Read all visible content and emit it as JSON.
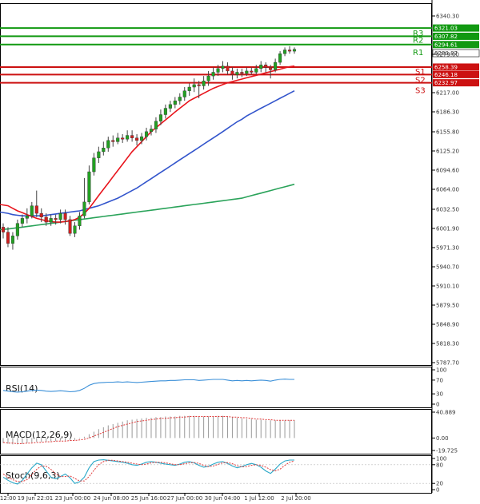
{
  "chart_data": {
    "type": "candlestick",
    "colors": {
      "up": "#22a022",
      "down": "#d11f1f",
      "wick": "#444444",
      "ma_short": "#e8141c",
      "ma_mid": "#3355cc",
      "ma_long": "#2aa35a",
      "resistance": "#119911",
      "support": "#cc1111",
      "rsi": "#3a8fd8",
      "macd_hist": "#999999",
      "macd_signal": "#e03a3a",
      "stoch_main": "#2aa8c8",
      "stoch_signal": "#e03a3a"
    },
    "price_axis": {
      "min": 5787.7,
      "max": 6340.3,
      "ticks": [
        "6340.30",
        "6279.00",
        "6217.00",
        "6186.30",
        "6155.80",
        "6125.20",
        "6094.60",
        "6064.00",
        "6032.50",
        "6001.90",
        "5971.30",
        "5940.70",
        "5910.10",
        "5879.50",
        "5848.90",
        "5818.30",
        "5787.70"
      ]
    },
    "time_axis": [
      "12:00",
      "19 Jun 22:01",
      "23 Jun 00:00",
      "24 Jun 08:00",
      "25 Jun 16:00",
      "27 Jun 00:00",
      "30 Jun 04:00",
      "1 Jul 12:00",
      "2 Jul 20:00"
    ],
    "levels": [
      {
        "name": "R3",
        "value": 6321.03,
        "label": "6321.03",
        "kind": "resistance"
      },
      {
        "name": "R2",
        "value": 6307.82,
        "label": "6307.82",
        "kind": "resistance"
      },
      {
        "name": "R1",
        "value": 6294.61,
        "label": "6294.61",
        "kind": "resistance"
      },
      {
        "name": "S1",
        "value": 6258.39,
        "label": "6258.39",
        "kind": "support"
      },
      {
        "name": "S2",
        "value": 6246.18,
        "label": "6246.18",
        "kind": "support"
      },
      {
        "name": "S3",
        "value": 6232.97,
        "label": "6232.97",
        "kind": "support"
      }
    ],
    "current_price": {
      "value": 6280.87,
      "label": "6280.87"
    },
    "candles": [
      [
        6004,
        5996,
        6010,
        5986
      ],
      [
        5996,
        5978,
        6004,
        5972
      ],
      [
        5978,
        5990,
        5996,
        5968
      ],
      [
        5990,
        6010,
        6016,
        5984
      ],
      [
        6010,
        6018,
        6024,
        6004
      ],
      [
        6018,
        6022,
        6034,
        6010
      ],
      [
        6022,
        6038,
        6044,
        6018
      ],
      [
        6038,
        6026,
        6062,
        6020
      ],
      [
        6026,
        6020,
        6034,
        6012
      ],
      [
        6020,
        6012,
        6026,
        6006
      ],
      [
        6012,
        6018,
        6024,
        6006
      ],
      [
        6018,
        6016,
        6024,
        6008
      ],
      [
        6016,
        6026,
        6032,
        6010
      ],
      [
        6026,
        6016,
        6032,
        6008
      ],
      [
        6016,
        5994,
        6022,
        5990
      ],
      [
        5994,
        6006,
        6012,
        5988
      ],
      [
        6006,
        6022,
        6028,
        6000
      ],
      [
        6022,
        6044,
        6082,
        6018
      ],
      [
        6044,
        6092,
        6102,
        6040
      ],
      [
        6092,
        6114,
        6122,
        6086
      ],
      [
        6114,
        6124,
        6132,
        6106
      ],
      [
        6124,
        6130,
        6140,
        6118
      ],
      [
        6130,
        6142,
        6148,
        6124
      ],
      [
        6142,
        6140,
        6150,
        6132
      ],
      [
        6140,
        6146,
        6154,
        6136
      ],
      [
        6146,
        6144,
        6152,
        6138
      ],
      [
        6144,
        6150,
        6158,
        6140
      ],
      [
        6150,
        6146,
        6158,
        6140
      ],
      [
        6146,
        6142,
        6152,
        6134
      ],
      [
        6142,
        6148,
        6154,
        6136
      ],
      [
        6148,
        6156,
        6162,
        6142
      ],
      [
        6156,
        6160,
        6166,
        6150
      ],
      [
        6160,
        6172,
        6178,
        6154
      ],
      [
        6172,
        6182,
        6190,
        6166
      ],
      [
        6182,
        6192,
        6198,
        6176
      ],
      [
        6192,
        6198,
        6204,
        6186
      ],
      [
        6198,
        6204,
        6210,
        6192
      ],
      [
        6204,
        6210,
        6216,
        6198
      ],
      [
        6210,
        6220,
        6226,
        6204
      ],
      [
        6220,
        6226,
        6232,
        6212
      ],
      [
        6226,
        6230,
        6240,
        6218
      ],
      [
        6230,
        6228,
        6236,
        6208
      ],
      [
        6228,
        6236,
        6244,
        6222
      ],
      [
        6236,
        6244,
        6252,
        6228
      ],
      [
        6244,
        6250,
        6258,
        6238
      ],
      [
        6250,
        6256,
        6262,
        6244
      ],
      [
        6256,
        6260,
        6268,
        6250
      ],
      [
        6260,
        6252,
        6266,
        6246
      ],
      [
        6252,
        6246,
        6258,
        6238
      ],
      [
        6246,
        6250,
        6256,
        6240
      ],
      [
        6250,
        6248,
        6256,
        6242
      ],
      [
        6248,
        6252,
        6258,
        6244
      ],
      [
        6252,
        6250,
        6258,
        6246
      ],
      [
        6250,
        6256,
        6262,
        6246
      ],
      [
        6256,
        6262,
        6268,
        6250
      ],
      [
        6262,
        6258,
        6266,
        6250
      ],
      [
        6258,
        6254,
        6262,
        6240
      ],
      [
        6254,
        6266,
        6272,
        6250
      ],
      [
        6266,
        6280,
        6284,
        6262
      ],
      [
        6280,
        6286,
        6290,
        6276
      ],
      [
        6286,
        6284,
        6292,
        6280
      ],
      [
        6284,
        6287,
        6290,
        6280
      ]
    ],
    "ma": {
      "short": [
        6040,
        6038,
        6034,
        6030,
        6027,
        6024,
        6021,
        6018,
        6016,
        6014,
        6013,
        6012,
        6012,
        6013,
        6014,
        6016,
        6020,
        6026,
        6034,
        6044,
        6054,
        6064,
        6074,
        6084,
        6094,
        6104,
        6114,
        6124,
        6132,
        6140,
        6148,
        6156,
        6162,
        6168,
        6174,
        6180,
        6186,
        6192,
        6198,
        6204,
        6208,
        6212,
        6216,
        6220,
        6224,
        6227,
        6230,
        6233,
        6235,
        6237,
        6239,
        6241,
        6243,
        6245,
        6247,
        6249,
        6251,
        6253,
        6255,
        6257,
        6259,
        6260
      ],
      "mid": [
        6028,
        6026,
        6024,
        6023,
        6022,
        6022,
        6022,
        6022,
        6022,
        6023,
        6024,
        6025,
        6026,
        6027,
        6028,
        6029,
        6030,
        6032,
        6034,
        6036,
        6038,
        6041,
        6044,
        6047,
        6050,
        6054,
        6058,
        6062,
        6066,
        6071,
        6076,
        6081,
        6086,
        6091,
        6096,
        6101,
        6106,
        6111,
        6116,
        6121,
        6126,
        6131,
        6136,
        6141,
        6146,
        6151,
        6156,
        6161,
        6166,
        6171,
        6175,
        6180,
        6184,
        6188,
        6192,
        6196,
        6200,
        6204,
        6208,
        6212,
        6216,
        6220
      ],
      "long": [
        6000,
        6001,
        6002,
        6003,
        6004,
        6005,
        6006,
        6007,
        6008,
        6009,
        6010,
        6011,
        6012,
        6013,
        6014,
        6015,
        6016,
        6017,
        6018,
        6019,
        6020,
        6021,
        6022,
        6023,
        6024,
        6025,
        6026,
        6027,
        6028,
        6029,
        6030,
        6031,
        6032,
        6033,
        6034,
        6035,
        6036,
        6037,
        6038,
        6039,
        6040,
        6041,
        6042,
        6043,
        6044,
        6045,
        6046,
        6047,
        6048,
        6049,
        6050,
        6052,
        6054,
        6056,
        6058,
        6060,
        6062,
        6064,
        6066,
        6068,
        6070,
        6072
      ]
    },
    "rsi": {
      "label": "RSI(14)",
      "axis_ticks": [
        "100",
        "70",
        "30",
        "0"
      ],
      "min": 0,
      "max": 100,
      "values": [
        40,
        38,
        36,
        35,
        36,
        38,
        40,
        41,
        40,
        38,
        37,
        38,
        39,
        38,
        36,
        37,
        40,
        46,
        55,
        60,
        62,
        63,
        64,
        64,
        65,
        64,
        65,
        64,
        63,
        64,
        65,
        66,
        67,
        68,
        68,
        69,
        69,
        70,
        71,
        71,
        71,
        69,
        70,
        71,
        72,
        72,
        72,
        70,
        68,
        69,
        68,
        69,
        68,
        69,
        70,
        69,
        67,
        70,
        72,
        73,
        72,
        72
      ]
    },
    "macd": {
      "label": "MACD(12,26,9)",
      "axis_ticks": [
        "40.889",
        "0.00",
        "-19.725"
      ],
      "min": -19.725,
      "max": 40.889,
      "histogram": [
        -8,
        -9,
        -10,
        -10,
        -9,
        -8,
        -7,
        -6,
        -6,
        -6,
        -5,
        -5,
        -4,
        -4,
        -4,
        -3,
        -1,
        2,
        6,
        10,
        14,
        17,
        20,
        22,
        24,
        26,
        28,
        29,
        30,
        31,
        32,
        32,
        33,
        33,
        34,
        34,
        34,
        35,
        35,
        35,
        35,
        34,
        34,
        34,
        34,
        35,
        35,
        34,
        33,
        32,
        31,
        30,
        30,
        29,
        29,
        28,
        28,
        28,
        28,
        28,
        28,
        28
      ],
      "signal": [
        -7,
        -8,
        -8,
        -9,
        -9,
        -8,
        -8,
        -7,
        -7,
        -6,
        -6,
        -5,
        -5,
        -5,
        -4,
        -4,
        -3,
        -2,
        0,
        3,
        6,
        9,
        12,
        15,
        18,
        20,
        22,
        24,
        26,
        27,
        28,
        29,
        30,
        31,
        31,
        32,
        32,
        33,
        33,
        34,
        34,
        34,
        34,
        34,
        34,
        34,
        34,
        34,
        33,
        33,
        32,
        32,
        31,
        30,
        30,
        29,
        29,
        28,
        28,
        28,
        28,
        28
      ]
    },
    "stoch": {
      "label": "Stoch(9,6,3)",
      "axis_ticks": [
        "100",
        "80",
        "20",
        "0"
      ],
      "min": 0,
      "max": 100,
      "main": [
        40,
        30,
        22,
        18,
        30,
        50,
        70,
        85,
        80,
        60,
        40,
        35,
        42,
        50,
        38,
        20,
        25,
        40,
        70,
        90,
        95,
        96,
        94,
        92,
        90,
        88,
        85,
        80,
        78,
        82,
        88,
        90,
        88,
        85,
        82,
        80,
        78,
        82,
        88,
        90,
        86,
        78,
        72,
        75,
        82,
        88,
        90,
        84,
        76,
        70,
        74,
        80,
        84,
        80,
        72,
        60,
        52,
        66,
        82,
        92,
        95,
        95
      ],
      "signal": [
        50,
        40,
        32,
        26,
        26,
        32,
        48,
        65,
        76,
        75,
        65,
        50,
        42,
        42,
        44,
        36,
        28,
        28,
        42,
        62,
        80,
        90,
        94,
        94,
        92,
        90,
        88,
        85,
        82,
        80,
        82,
        86,
        88,
        88,
        86,
        83,
        80,
        80,
        83,
        86,
        87,
        84,
        78,
        74,
        76,
        81,
        86,
        87,
        83,
        77,
        73,
        74,
        78,
        80,
        78,
        72,
        64,
        60,
        66,
        78,
        88,
        92
      ]
    }
  }
}
